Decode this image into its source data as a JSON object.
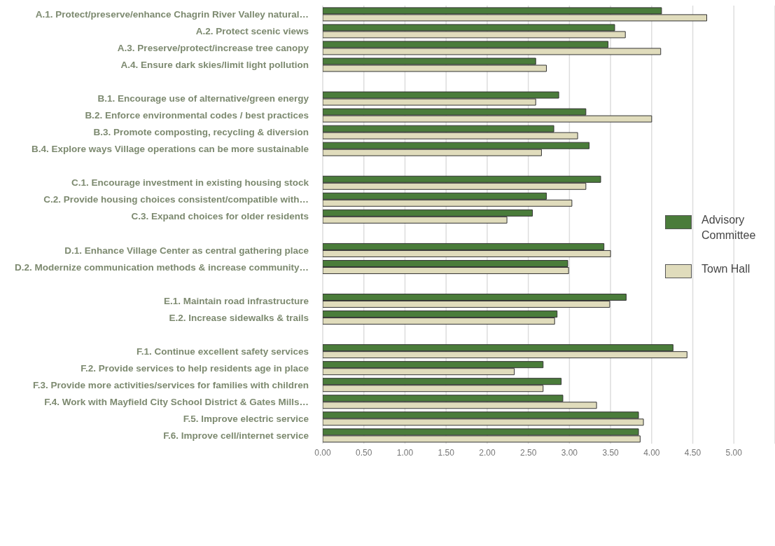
{
  "chart_data": {
    "type": "bar",
    "orientation": "horizontal",
    "categories": [
      "A.1. Protect/preserve/enhance Chagrin River Valley natural…",
      "A.2. Protect scenic views",
      "A.3. Preserve/protect/increase tree canopy",
      "A.4. Ensure dark skies/limit light pollution",
      null,
      "B.1. Encourage use of alternative/green energy",
      "B.2. Enforce environmental codes / best practices",
      "B.3. Promote composting, recycling & diversion",
      "B.4. Explore ways Village operations can be more sustainable",
      null,
      "C.1. Encourage investment in existing housing stock",
      "C.2. Provide housing choices consistent/compatible with…",
      "C.3. Expand choices for older residents",
      null,
      "D.1. Enhance Village Center as central gathering place",
      "D.2. Modernize communication methods & increase community…",
      null,
      "E.1. Maintain road infrastructure",
      "E.2. Increase sidewalks & trails",
      null,
      "F.1. Continue excellent safety services",
      "F.2. Provide services to help residents age in place",
      "F.3. Provide more activities/services for families with children",
      "F.4. Work with Mayfield City School District & Gates Mills…",
      "F.5. Improve electric service",
      "F.6. Improve cell/internet service"
    ],
    "series": [
      {
        "name": "Advisory Committee",
        "color": "#4a7c3a",
        "values": [
          4.12,
          3.55,
          3.47,
          2.59,
          null,
          2.87,
          3.2,
          2.81,
          3.24,
          null,
          3.38,
          2.72,
          2.55,
          null,
          3.42,
          2.98,
          null,
          3.69,
          2.85,
          null,
          4.26,
          2.68,
          2.9,
          2.92,
          3.84,
          3.84
        ]
      },
      {
        "name": "Town Hall",
        "color": "#e0dcbc",
        "values": [
          4.67,
          3.68,
          4.11,
          2.72,
          null,
          2.59,
          4.0,
          3.1,
          2.66,
          null,
          3.2,
          3.03,
          2.24,
          null,
          3.5,
          2.99,
          null,
          3.49,
          2.82,
          null,
          4.43,
          2.33,
          2.68,
          3.33,
          3.9,
          3.86
        ]
      }
    ],
    "xlim": [
      0,
      5.5
    ],
    "xticks": [
      {
        "value": 0,
        "label": "0.00"
      },
      {
        "value": 0.5,
        "label": "0.50"
      },
      {
        "value": 1,
        "label": "1.00"
      },
      {
        "value": 1.5,
        "label": "1.50"
      },
      {
        "value": 2,
        "label": "2.00"
      },
      {
        "value": 2.5,
        "label": "2.50"
      },
      {
        "value": 3,
        "label": "3.00"
      },
      {
        "value": 3.5,
        "label": "3.50"
      },
      {
        "value": 4,
        "label": "4.00"
      },
      {
        "value": 4.5,
        "label": "4.50"
      },
      {
        "value": 5,
        "label": "5.00"
      }
    ],
    "grid": "x",
    "legend": "right"
  }
}
